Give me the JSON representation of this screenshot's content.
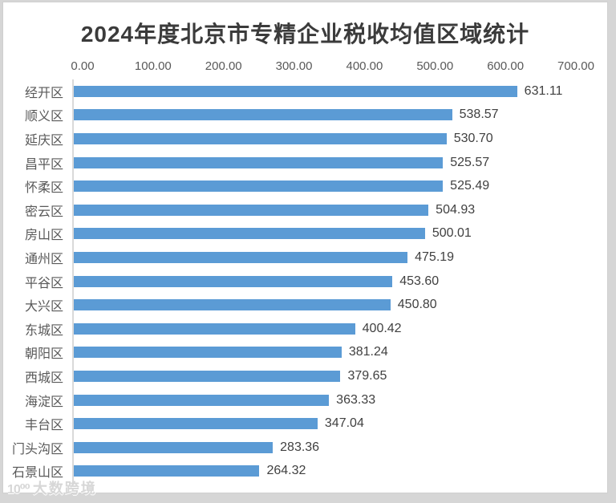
{
  "watermark": {
    "logo": "10⁰⁰",
    "text": "大数跨境"
  },
  "colors": {
    "bar": "#5b9bd5",
    "axis_line": "#d9d9d9",
    "tick_text": "#595959",
    "category_text": "#595959",
    "value_text": "#404040",
    "title_text": "#3b3b3b",
    "panel_bg": "#ffffff",
    "outer_bg": "#d6d6d6"
  },
  "chart_data": {
    "type": "bar",
    "orientation": "horizontal",
    "title": "2024年度北京市专精企业税收均值区域统计",
    "xlabel": "",
    "ylabel": "",
    "xlim": [
      0,
      700
    ],
    "x_ticks": [
      "0.00",
      "100.00",
      "200.00",
      "300.00",
      "400.00",
      "500.00",
      "600.00",
      "700.00"
    ],
    "axis_position": "top",
    "grid": false,
    "legend": false,
    "value_labels_position": "outside-end",
    "categories": [
      "经开区",
      "顺义区",
      "延庆区",
      "昌平区",
      "怀柔区",
      "密云区",
      "房山区",
      "通州区",
      "平谷区",
      "大兴区",
      "东城区",
      "朝阳区",
      "西城区",
      "海淀区",
      "丰台区",
      "门头沟区",
      "石景山区"
    ],
    "values": [
      631.11,
      538.57,
      530.7,
      525.57,
      525.49,
      504.93,
      500.01,
      475.19,
      453.6,
      450.8,
      400.42,
      381.24,
      379.65,
      363.33,
      347.04,
      283.36,
      264.32
    ],
    "value_labels": [
      "631.11",
      "538.57",
      "530.70",
      "525.57",
      "525.49",
      "504.93",
      "500.01",
      "475.19",
      "453.60",
      "450.80",
      "400.42",
      "381.24",
      "379.65",
      "363.33",
      "347.04",
      "283.36",
      "264.32"
    ]
  }
}
